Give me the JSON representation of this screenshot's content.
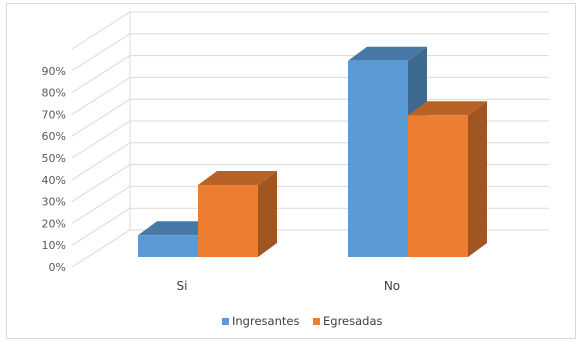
{
  "chart_data": {
    "type": "bar",
    "style": "3d-clustered-column",
    "categories": [
      "Si",
      "No"
    ],
    "series": [
      {
        "name": "Ingresantes",
        "values": [
          10,
          90
        ],
        "color": "#5B9BD5"
      },
      {
        "name": "Egresadas",
        "values": [
          33,
          65
        ],
        "color": "#ED7D31"
      }
    ],
    "y_ticks": [
      "0%",
      "10%",
      "20%",
      "30%",
      "40%",
      "50%",
      "60%",
      "70%",
      "80%",
      "90%"
    ],
    "ylim": [
      0,
      100
    ],
    "grid": true,
    "legend_position": "bottom",
    "title": "",
    "xlabel": "",
    "ylabel": ""
  }
}
